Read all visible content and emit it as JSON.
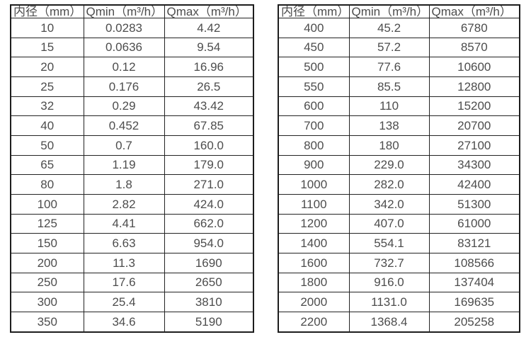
{
  "page": {
    "background_color": "#ffffff",
    "text_color": "#4d4d4d",
    "border_color": "#1d1d1d"
  },
  "tables": [
    {
      "name": "flow-spec-table-small-diameters",
      "headers": [
        "内径（mm）",
        "Qmin（m³/h）",
        "Qmax（m³/h）"
      ],
      "rows": [
        [
          "10",
          "0.0283",
          "4.42"
        ],
        [
          "15",
          "0.0636",
          "9.54"
        ],
        [
          "20",
          "0.12",
          "16.96"
        ],
        [
          "25",
          "0.176",
          "26.5"
        ],
        [
          "32",
          "0.29",
          "43.42"
        ],
        [
          "40",
          "0.452",
          "67.85"
        ],
        [
          "50",
          "0.7",
          "160.0"
        ],
        [
          "65",
          "1.19",
          "179.0"
        ],
        [
          "80",
          "1.8",
          "271.0"
        ],
        [
          "100",
          "2.82",
          "424.0"
        ],
        [
          "125",
          "4.41",
          "662.0"
        ],
        [
          "150",
          "6.63",
          "954.0"
        ],
        [
          "200",
          "11.3",
          "1690"
        ],
        [
          "250",
          "17.6",
          "2650"
        ],
        [
          "300",
          "25.4",
          "3810"
        ],
        [
          "350",
          "34.6",
          "5190"
        ]
      ]
    },
    {
      "name": "flow-spec-table-large-diameters",
      "headers": [
        "内径（mm）",
        "Qmin（m³/h）",
        "Qmax（m³/h）"
      ],
      "rows": [
        [
          "400",
          "45.2",
          "6780"
        ],
        [
          "450",
          "57.2",
          "8570"
        ],
        [
          "500",
          "77.6",
          "10600"
        ],
        [
          "550",
          "85.5",
          "12800"
        ],
        [
          "600",
          "110",
          "15200"
        ],
        [
          "700",
          "138",
          "20700"
        ],
        [
          "800",
          "180",
          "27100"
        ],
        [
          "900",
          "229.0",
          "34300"
        ],
        [
          "1000",
          "282.0",
          "42400"
        ],
        [
          "1100",
          "342.0",
          "51300"
        ],
        [
          "1200",
          "407.0",
          "61000"
        ],
        [
          "1400",
          "554.1",
          "83121"
        ],
        [
          "1600",
          "732.7",
          "108566"
        ],
        [
          "1800",
          "916.0",
          "137404"
        ],
        [
          "2000",
          "1131.0",
          "169635"
        ],
        [
          "2200",
          "1368.4",
          "205258"
        ]
      ]
    }
  ]
}
